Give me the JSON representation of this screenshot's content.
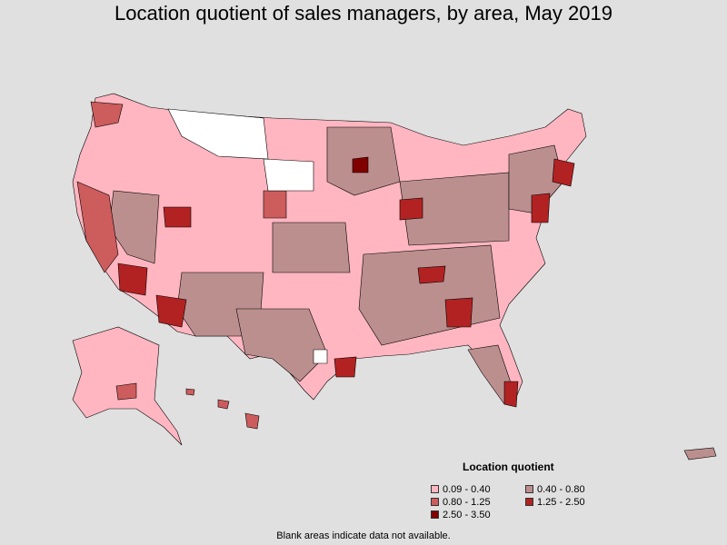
{
  "title": "Location quotient of sales managers, by area, May 2019",
  "legend": {
    "title": "Location quotient",
    "items": [
      {
        "label": "0.09 - 0.40",
        "color": "#ffb6c1"
      },
      {
        "label": "0.40 - 0.80",
        "color": "#bc8f8f"
      },
      {
        "label": "0.80 - 1.25",
        "color": "#cd5c5c"
      },
      {
        "label": "1.25 - 2.50",
        "color": "#b22222"
      },
      {
        "label": "2.50 - 3.50",
        "color": "#800000"
      }
    ]
  },
  "footnote": "Blank areas indicate data not available.",
  "colors": {
    "background": "#e0e0e0",
    "no_data": "#ffffff",
    "border": "#000000"
  }
}
